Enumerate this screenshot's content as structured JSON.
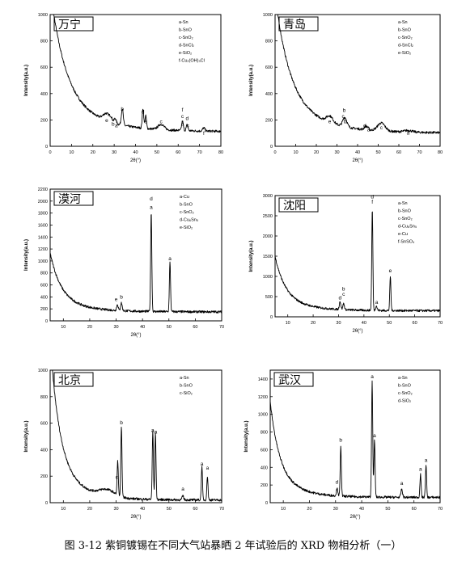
{
  "caption": "图 3-12 紫铜镀锡在不同大气站暴晒 2 年试验后的 XRD 物相分析（一）",
  "chart_data": [
    {
      "type": "line",
      "title": "万宁",
      "xlabel": "2θ(°)",
      "ylabel": "Intensity(a.u.)",
      "xlim": [
        0,
        80
      ],
      "ylim": [
        0,
        1000
      ],
      "xticks": [
        0,
        10,
        20,
        30,
        40,
        50,
        60,
        70,
        80
      ],
      "yticks": [
        0,
        200,
        400,
        600,
        800,
        1000
      ],
      "legend": [
        "a-Sn",
        "b-SnO",
        "c-SnO₂",
        "d-SnCl₂",
        "e-SiO₂",
        "f-Cu₂(OH)₃Cl"
      ],
      "legend_position": "top-right",
      "background": {
        "start": 920,
        "decay": 7.0,
        "base": 110
      },
      "peaks": [
        [
          26.5,
          55,
          1.6
        ],
        [
          28.5,
          20,
          0.6
        ],
        [
          30.5,
          35,
          0.5
        ],
        [
          33.8,
          125,
          0.45
        ],
        [
          43.5,
          150,
          0.35
        ],
        [
          44.8,
          95,
          0.35
        ],
        [
          52,
          40,
          1.4
        ],
        [
          62,
          70,
          0.4
        ],
        [
          64.2,
          45,
          0.4
        ],
        [
          72,
          25,
          0.5
        ]
      ],
      "labels": [
        {
          "x": 26.5,
          "y": 185,
          "text": "e"
        },
        {
          "x": 29.5,
          "y": 155,
          "text": "b"
        },
        {
          "x": 31,
          "y": 145,
          "text": "a"
        },
        {
          "x": 33.8,
          "y": 270,
          "text": "b"
        },
        {
          "x": 43.5,
          "y": 250,
          "text": "d"
        },
        {
          "x": 44.8,
          "y": 175,
          "text": "a"
        },
        {
          "x": 52,
          "y": 175,
          "text": "c"
        },
        {
          "x": 62,
          "y": 265,
          "text": "f"
        },
        {
          "x": 62,
          "y": 215,
          "text": "c"
        },
        {
          "x": 64.2,
          "y": 200,
          "text": "d"
        },
        {
          "x": 62,
          "y": 155,
          "text": "a"
        },
        {
          "x": 64.5,
          "y": 145,
          "text": "c"
        },
        {
          "x": 72,
          "y": 85,
          "text": "f"
        }
      ]
    },
    {
      "type": "line",
      "title": "青岛",
      "xlabel": "2θ(°)",
      "ylabel": "Intensity(a.u.)",
      "xlim": [
        0,
        80
      ],
      "ylim": [
        0,
        1000
      ],
      "xticks": [
        0,
        10,
        20,
        30,
        40,
        50,
        60,
        70,
        80
      ],
      "yticks": [
        0,
        200,
        400,
        600,
        800,
        1000
      ],
      "legend": [
        "a-Sn",
        "b-SnO",
        "c-SnO₂",
        "d-SnCl₂",
        "e-SiO₂"
      ],
      "legend_position": "top-right",
      "background": {
        "start": 880,
        "decay": 7.0,
        "base": 100
      },
      "peaks": [
        [
          26.5,
          50,
          1.6
        ],
        [
          33.8,
          70,
          1.0
        ],
        [
          43.8,
          25,
          0.6
        ],
        [
          45,
          18,
          0.5
        ],
        [
          51.5,
          60,
          1.8
        ],
        [
          64.5,
          12,
          2.0
        ]
      ],
      "labels": [
        {
          "x": 26.5,
          "y": 175,
          "text": "e"
        },
        {
          "x": 33.5,
          "y": 260,
          "text": "b"
        },
        {
          "x": 33,
          "y": 215,
          "text": "c"
        },
        {
          "x": 34,
          "y": 175,
          "text": "b"
        },
        {
          "x": 43.5,
          "y": 145,
          "text": "d"
        },
        {
          "x": 45.3,
          "y": 115,
          "text": "a"
        },
        {
          "x": 51.5,
          "y": 130,
          "text": "c"
        },
        {
          "x": 64.5,
          "y": 90,
          "text": "a"
        }
      ]
    },
    {
      "type": "line",
      "title": "漠河",
      "xlabel": "2θ(°)",
      "ylabel": "Intensity(a.u.)",
      "xlim": [
        5,
        70
      ],
      "ylim": [
        0,
        2200
      ],
      "xticks": [
        10,
        20,
        30,
        40,
        50,
        60,
        70
      ],
      "yticks": [
        0,
        200,
        400,
        600,
        800,
        1000,
        1200,
        1400,
        1600,
        1800,
        2000,
        2200
      ],
      "legend": [
        "a-Cu",
        "b-SnO",
        "c-SnO₂",
        "d-Cu₆Sn₅",
        "e-SiO₂"
      ],
      "legend_position": "top-right",
      "background": {
        "start": 880,
        "decay": 4.0,
        "base": 150
      },
      "peaks": [
        [
          30.5,
          100,
          0.3
        ],
        [
          32,
          130,
          0.3
        ],
        [
          43.3,
          1670,
          0.22
        ],
        [
          50.4,
          820,
          0.22
        ]
      ],
      "labels": [
        {
          "x": 30,
          "y": 330,
          "text": "e"
        },
        {
          "x": 32,
          "y": 370,
          "text": "b"
        },
        {
          "x": 43.3,
          "y": 2010,
          "text": "d"
        },
        {
          "x": 43.3,
          "y": 1870,
          "text": "a"
        },
        {
          "x": 50.4,
          "y": 1010,
          "text": "a"
        }
      ]
    },
    {
      "type": "line",
      "title": "沈阳",
      "xlabel": "2θ(°)",
      "ylabel": "Intensity(a.u.)",
      "xlim": [
        5,
        70
      ],
      "ylim": [
        0,
        3000
      ],
      "xticks": [
        10,
        20,
        30,
        40,
        50,
        60,
        70
      ],
      "yticks": [
        0,
        500,
        1000,
        1500,
        2000,
        2500,
        3000
      ],
      "legend": [
        "a-Sn",
        "b-SnO",
        "c-SnO₂",
        "d-Cu₆Sn₅",
        "e-Cu",
        "f-SnSO₄"
      ],
      "legend_position": "top-right",
      "background": {
        "start": 1150,
        "decay": 4.0,
        "base": 150
      },
      "peaks": [
        [
          30.6,
          200,
          0.3
        ],
        [
          32,
          150,
          0.3
        ],
        [
          43.3,
          2500,
          0.22
        ],
        [
          44.9,
          110,
          0.3
        ],
        [
          50.4,
          850,
          0.22
        ]
      ],
      "labels": [
        {
          "x": 30.6,
          "y": 430,
          "text": "d"
        },
        {
          "x": 32,
          "y": 650,
          "text": "b"
        },
        {
          "x": 32,
          "y": 520,
          "text": "c"
        },
        {
          "x": 43.3,
          "y": 2930,
          "text": "d"
        },
        {
          "x": 43.3,
          "y": 2800,
          "text": "f"
        },
        {
          "x": 45,
          "y": 320,
          "text": "a"
        },
        {
          "x": 50.4,
          "y": 1100,
          "text": "e"
        }
      ]
    },
    {
      "type": "line",
      "title": "北京",
      "xlabel": "2θ(°)",
      "ylabel": "Intensity(a.u.)",
      "xlim": [
        5,
        70
      ],
      "ylim": [
        0,
        1000
      ],
      "xticks": [
        10,
        20,
        30,
        40,
        50,
        60,
        70
      ],
      "yticks": [
        0,
        200,
        400,
        600,
        800,
        1000
      ],
      "legend": [
        "a-Sn",
        "b-SnO",
        "c-SiO₂"
      ],
      "legend_position": "top-right",
      "background": {
        "start": 910,
        "decay": 3.5,
        "base": 20
      },
      "peaks": [
        [
          26.5,
          50,
          3.0
        ],
        [
          30.6,
          260,
          0.22
        ],
        [
          32,
          520,
          0.22
        ],
        [
          43.9,
          510,
          0.22
        ],
        [
          44.9,
          500,
          0.22
        ],
        [
          55.3,
          30,
          0.3
        ],
        [
          62.5,
          250,
          0.22
        ],
        [
          64.6,
          180,
          0.22
        ]
      ],
      "labels": [
        {
          "x": 30.2,
          "y": 180,
          "text": "c"
        },
        {
          "x": 32,
          "y": 590,
          "text": "b"
        },
        {
          "x": 43.9,
          "y": 535,
          "text": "a"
        },
        {
          "x": 45,
          "y": 520,
          "text": "a"
        },
        {
          "x": 55.3,
          "y": 90,
          "text": "a"
        },
        {
          "x": 62.5,
          "y": 280,
          "text": "a"
        },
        {
          "x": 64.6,
          "y": 250,
          "text": "a"
        }
      ]
    },
    {
      "type": "line",
      "title": "武汉",
      "xlabel": "2θ(°)",
      "ylabel": "Intensity(a.u.)",
      "xlim": [
        5,
        70
      ],
      "ylim": [
        0,
        1500
      ],
      "xticks": [
        10,
        20,
        30,
        40,
        50,
        60,
        70
      ],
      "yticks": [
        0,
        200,
        400,
        600,
        800,
        1000,
        1200,
        1400
      ],
      "legend": [
        "a-Sn",
        "b-SnO",
        "c-SnO₂",
        "d-SiO₂"
      ],
      "legend_position": "top-right",
      "background": {
        "start": 860,
        "decay": 3.5,
        "base": 60
      },
      "peaks": [
        [
          30.6,
          80,
          0.3
        ],
        [
          32,
          560,
          0.22
        ],
        [
          44,
          1320,
          0.22
        ],
        [
          44.9,
          650,
          0.22
        ],
        [
          55.3,
          90,
          0.3
        ],
        [
          62.5,
          260,
          0.22
        ],
        [
          64.6,
          360,
          0.22
        ]
      ],
      "labels": [
        {
          "x": 30.5,
          "y": 215,
          "text": "d"
        },
        {
          "x": 32,
          "y": 690,
          "text": "b"
        },
        {
          "x": 44,
          "y": 1410,
          "text": "a"
        },
        {
          "x": 44.9,
          "y": 740,
          "text": "a"
        },
        {
          "x": 55.3,
          "y": 200,
          "text": "a"
        },
        {
          "x": 62.5,
          "y": 360,
          "text": "a"
        },
        {
          "x": 64.6,
          "y": 460,
          "text": "a"
        }
      ]
    }
  ]
}
